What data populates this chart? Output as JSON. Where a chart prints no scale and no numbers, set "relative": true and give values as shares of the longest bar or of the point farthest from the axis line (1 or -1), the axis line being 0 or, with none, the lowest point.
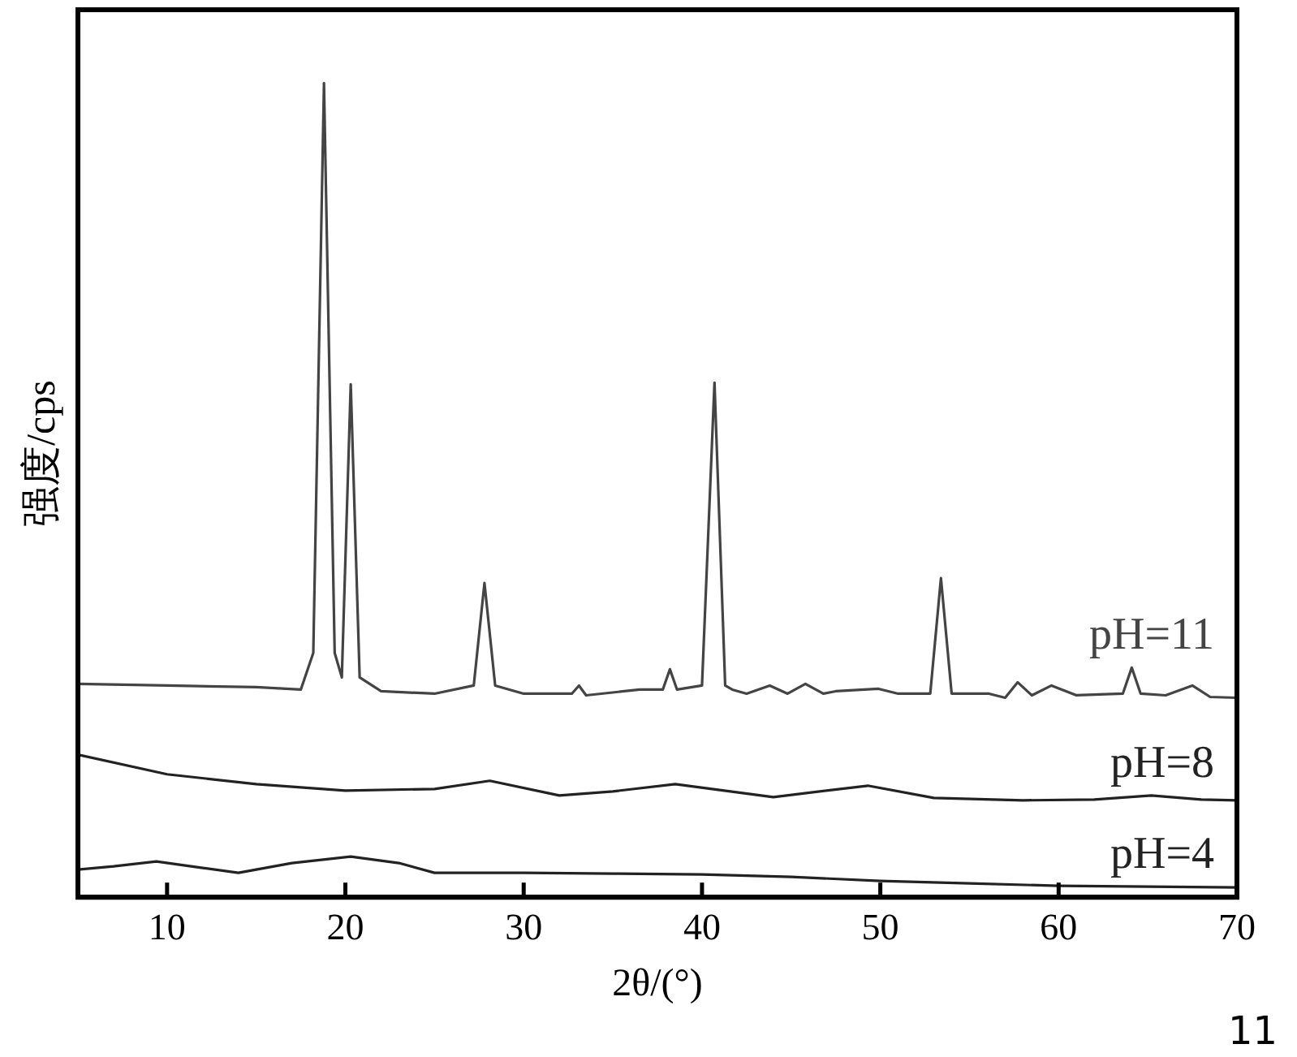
{
  "chart_data": {
    "type": "line",
    "relative": true,
    "xlabel": "2θ/(°)",
    "ylabel": "强度/cps",
    "xlim": [
      5,
      70
    ],
    "xticks": [
      10,
      20,
      30,
      40,
      50,
      60,
      70
    ],
    "grid": false,
    "legend": false,
    "marker": "none",
    "line_style": "solid",
    "annotations": [
      "11"
    ],
    "series": [
      {
        "name": "pH=11",
        "color": "#444444",
        "x": [
          5,
          10,
          15,
          17.5,
          18.2,
          18.8,
          19.4,
          19.8,
          20.3,
          20.8,
          22,
          25,
          27.2,
          27.8,
          28.4,
          30,
          32.7,
          33.1,
          33.5,
          36.5,
          37.8,
          38.2,
          38.6,
          40,
          40.7,
          41.3,
          41.7,
          42.5,
          43.8,
          44.8,
          45.8,
          46.8,
          47.5,
          49.9,
          51,
          52.8,
          53.4,
          54,
          56.1,
          57,
          57.7,
          58.5,
          59.6,
          61,
          63.6,
          64.1,
          64.6,
          66,
          67.5,
          68.5,
          70
        ],
        "values": [
          0.262,
          0.26,
          0.258,
          0.255,
          0.3,
          1.0,
          0.3,
          0.27,
          0.63,
          0.27,
          0.253,
          0.25,
          0.26,
          0.386,
          0.26,
          0.25,
          0.25,
          0.26,
          0.248,
          0.255,
          0.255,
          0.28,
          0.255,
          0.26,
          0.632,
          0.26,
          0.255,
          0.25,
          0.26,
          0.25,
          0.262,
          0.25,
          0.253,
          0.256,
          0.25,
          0.25,
          0.392,
          0.25,
          0.25,
          0.245,
          0.264,
          0.248,
          0.26,
          0.248,
          0.25,
          0.282,
          0.25,
          0.248,
          0.26,
          0.246,
          0.245
        ]
      },
      {
        "name": "pH=8",
        "color": "#222222",
        "x": [
          5,
          10,
          15,
          20,
          25,
          28.1,
          32,
          35,
          38.5,
          44,
          49.3,
          53,
          58,
          62,
          65.2,
          68,
          70
        ],
        "values": [
          0.175,
          0.151,
          0.139,
          0.131,
          0.133,
          0.143,
          0.125,
          0.13,
          0.139,
          0.123,
          0.137,
          0.122,
          0.119,
          0.12,
          0.125,
          0.12,
          0.119
        ]
      },
      {
        "name": "pH=4",
        "color": "#222222",
        "x": [
          5,
          7,
          9.4,
          12,
          14,
          17,
          20.3,
          23,
          25,
          30,
          35,
          40,
          45,
          50,
          55,
          60,
          65,
          70
        ],
        "values": [
          0.034,
          0.038,
          0.044,
          0.036,
          0.03,
          0.042,
          0.05,
          0.042,
          0.03,
          0.03,
          0.029,
          0.028,
          0.025,
          0.02,
          0.017,
          0.014,
          0.013,
          0.012
        ]
      }
    ]
  }
}
